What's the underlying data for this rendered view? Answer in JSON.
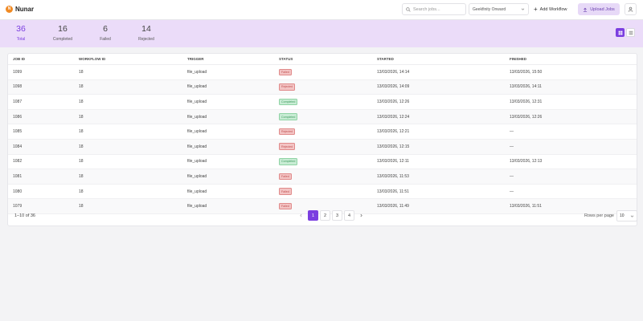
{
  "app": {
    "name": "Nunar",
    "logo_letter": "N"
  },
  "header": {
    "search_placeholder": "Search jobs...",
    "org_select_value": "Geekfinity Onward",
    "add_workflow_label": "Add Workflow",
    "upload_jobs_label": "Upload Jobs"
  },
  "stats": [
    {
      "value": "36",
      "label": "Total"
    },
    {
      "value": "16",
      "label": "Completed"
    },
    {
      "value": "6",
      "label": "Failed"
    },
    {
      "value": "14",
      "label": "Rejected"
    }
  ],
  "table": {
    "columns": [
      "JOB ID",
      "WORKFLOW ID",
      "TRIGGER",
      "STATUS",
      "STARTED",
      "FINISHED"
    ],
    "rows": [
      {
        "job_id": "1099",
        "workflow_id": "18",
        "trigger": "file_upload",
        "status": "Failed",
        "status_type": "failed",
        "started": "13/03/2026, 14:14",
        "finished": "13/03/2026, 15:50"
      },
      {
        "job_id": "1098",
        "workflow_id": "18",
        "trigger": "file_upload",
        "status": "Rejected",
        "status_type": "rejected",
        "started": "13/03/2026, 14:09",
        "finished": "13/03/2026, 14:11"
      },
      {
        "job_id": "1087",
        "workflow_id": "18",
        "trigger": "file_upload",
        "status": "Completed",
        "status_type": "completed",
        "started": "13/03/2026, 12:26",
        "finished": "13/03/2026, 12:31"
      },
      {
        "job_id": "1086",
        "workflow_id": "18",
        "trigger": "file_upload",
        "status": "Completed",
        "status_type": "completed",
        "started": "13/03/2026, 12:24",
        "finished": "13/03/2026, 12:26"
      },
      {
        "job_id": "1085",
        "workflow_id": "18",
        "trigger": "file_upload",
        "status": "Rejected",
        "status_type": "rejected",
        "started": "13/03/2026, 12:21",
        "finished": "—"
      },
      {
        "job_id": "1084",
        "workflow_id": "18",
        "trigger": "file_upload",
        "status": "Rejected",
        "status_type": "rejected",
        "started": "13/03/2026, 12:15",
        "finished": "—"
      },
      {
        "job_id": "1082",
        "workflow_id": "18",
        "trigger": "file_upload",
        "status": "Completed",
        "status_type": "completed",
        "started": "13/03/2026, 12:11",
        "finished": "13/03/2026, 12:13"
      },
      {
        "job_id": "1081",
        "workflow_id": "18",
        "trigger": "file_upload",
        "status": "Failed",
        "status_type": "failed",
        "started": "13/03/2026, 11:53",
        "finished": "—"
      },
      {
        "job_id": "1080",
        "workflow_id": "18",
        "trigger": "file_upload",
        "status": "Failed",
        "status_type": "failed",
        "started": "13/03/2026, 11:51",
        "finished": "—"
      },
      {
        "job_id": "1079",
        "workflow_id": "18",
        "trigger": "file_upload",
        "status": "Failed",
        "status_type": "failed",
        "started": "13/03/2026, 11:49",
        "finished": "13/03/2026, 11:51"
      }
    ]
  },
  "pagination": {
    "range_text": "1–10 of 36",
    "pages": [
      "1",
      "2",
      "3",
      "4"
    ],
    "current_page": "1",
    "rows_per_page_label": "Rows per page",
    "rows_per_page_value": "10"
  },
  "colors": {
    "accent": "#7b3fe0",
    "stats_bg": "#ebdcf9",
    "logo": "#f08a24"
  },
  "icons": {
    "search": "search-icon",
    "chevron": "chevron-down-icon",
    "plus": "plus-icon",
    "upload": "upload-icon",
    "user": "user-icon",
    "grid": "grid-view-icon",
    "list": "list-view-icon"
  }
}
